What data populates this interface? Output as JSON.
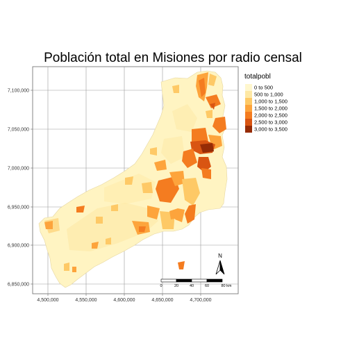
{
  "title": "Población total en Misiones por radio censal",
  "legend": {
    "title": "totalpobl",
    "items": [
      {
        "label": "0 to 500",
        "color": "#fff7cd"
      },
      {
        "label": "500 to 1,000",
        "color": "#fee8a4"
      },
      {
        "label": "1,000 to 1,500",
        "color": "#fec966"
      },
      {
        "label": "1,500 to 2,000",
        "color": "#fda43c"
      },
      {
        "label": "2,000 to 2,500",
        "color": "#f47c20"
      },
      {
        "label": "2,500 to 3,000",
        "color": "#d95512"
      },
      {
        "label": "3,000 to 3,500",
        "color": "#962c06"
      }
    ]
  },
  "axes": {
    "x_ticks": [
      "4,500,000",
      "4,550,000",
      "4,600,000",
      "4,650,000",
      "4,700,000"
    ],
    "y_ticks": [
      "7,100,000",
      "7,050,000",
      "7,000,000",
      "6,950,000",
      "6,900,000",
      "6,850,000"
    ],
    "grid": true
  },
  "scale_bar": {
    "labels": [
      "0",
      "20",
      "40",
      "60",
      "80 km"
    ]
  },
  "north_arrow": {
    "label": "N"
  }
}
